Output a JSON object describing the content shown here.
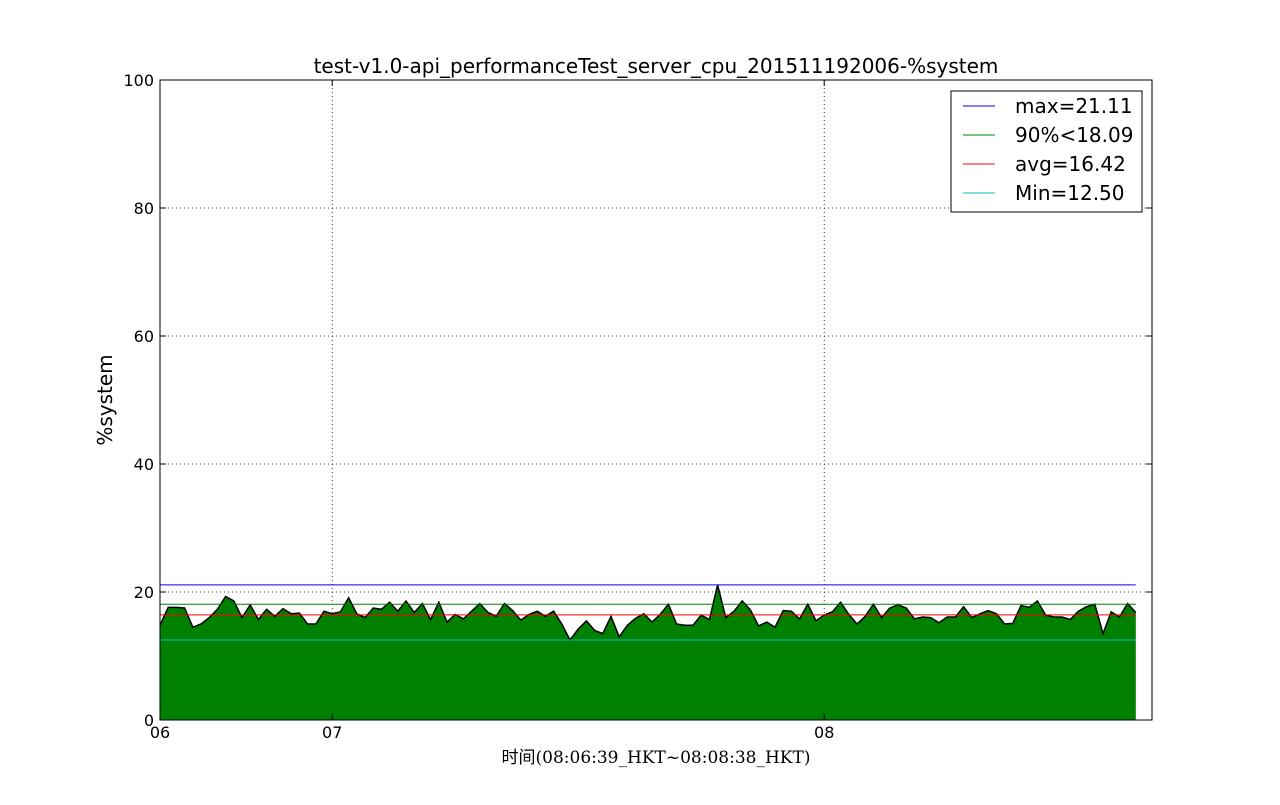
{
  "chart_data": {
    "type": "area",
    "title": "test-v1.0-api_performanceTest_server_cpu_201511192006-%system",
    "xlabel": "时间(08:06:39_HKT~08:08:38_HKT)",
    "ylabel": "%system",
    "ylim": [
      0,
      100
    ],
    "yticks": [
      0,
      20,
      40,
      60,
      80,
      100
    ],
    "xticks": [
      {
        "label": "06",
        "sample": 0
      },
      {
        "label": "07",
        "sample": 21
      },
      {
        "label": "08",
        "sample": 81
      }
    ],
    "grid": true,
    "legend_position": "top-right",
    "area_color": "#008000",
    "line_color": "#000000",
    "series": {
      "values": [
        14.8,
        17.6,
        17.6,
        17.5,
        14.5,
        15.0,
        16.0,
        17.3,
        19.3,
        18.6,
        16.0,
        18.0,
        15.7,
        17.3,
        16.2,
        17.4,
        16.6,
        16.7,
        15.0,
        15.0,
        17.0,
        16.6,
        16.9,
        19.1,
        16.6,
        16.0,
        17.5,
        17.3,
        18.4,
        17.0,
        18.6,
        16.8,
        18.2,
        15.7,
        18.4,
        15.3,
        16.5,
        15.8,
        17.0,
        18.2,
        16.8,
        16.2,
        18.2,
        17.1,
        15.6,
        16.5,
        17.0,
        16.2,
        17.0,
        15.0,
        12.5,
        14.2,
        15.5,
        14.0,
        13.5,
        16.2,
        13.0,
        14.8,
        15.9,
        16.6,
        15.3,
        16.5,
        18.1,
        15.0,
        14.8,
        14.8,
        16.4,
        15.7,
        21.1,
        16.0,
        17.0,
        18.6,
        17.2,
        14.7,
        15.3,
        14.5,
        17.1,
        17.0,
        15.8,
        18.1,
        15.5,
        16.4,
        16.9,
        18.4,
        16.5,
        15.0,
        16.2,
        18.1,
        16.0,
        17.5,
        18.0,
        17.5,
        15.8,
        16.1,
        16.0,
        15.2,
        16.1,
        16.1,
        17.7,
        16.0,
        16.6,
        17.1,
        16.6,
        15.0,
        15.1,
        17.9,
        17.6,
        18.6,
        16.4,
        16.1,
        16.1,
        15.7,
        17.0,
        17.7,
        18.1,
        13.5,
        16.9,
        16.1,
        18.2,
        16.8
      ]
    },
    "reference_lines": [
      {
        "label": "max=21.11",
        "value": 21.11,
        "color": "#0000ff"
      },
      {
        "label": "90%<18.09",
        "value": 18.09,
        "color": "#008000"
      },
      {
        "label": "avg=16.42",
        "value": 16.42,
        "color": "#ff0000"
      },
      {
        "label": "Min=12.50",
        "value": 12.5,
        "color": "#00bfbf"
      }
    ]
  }
}
